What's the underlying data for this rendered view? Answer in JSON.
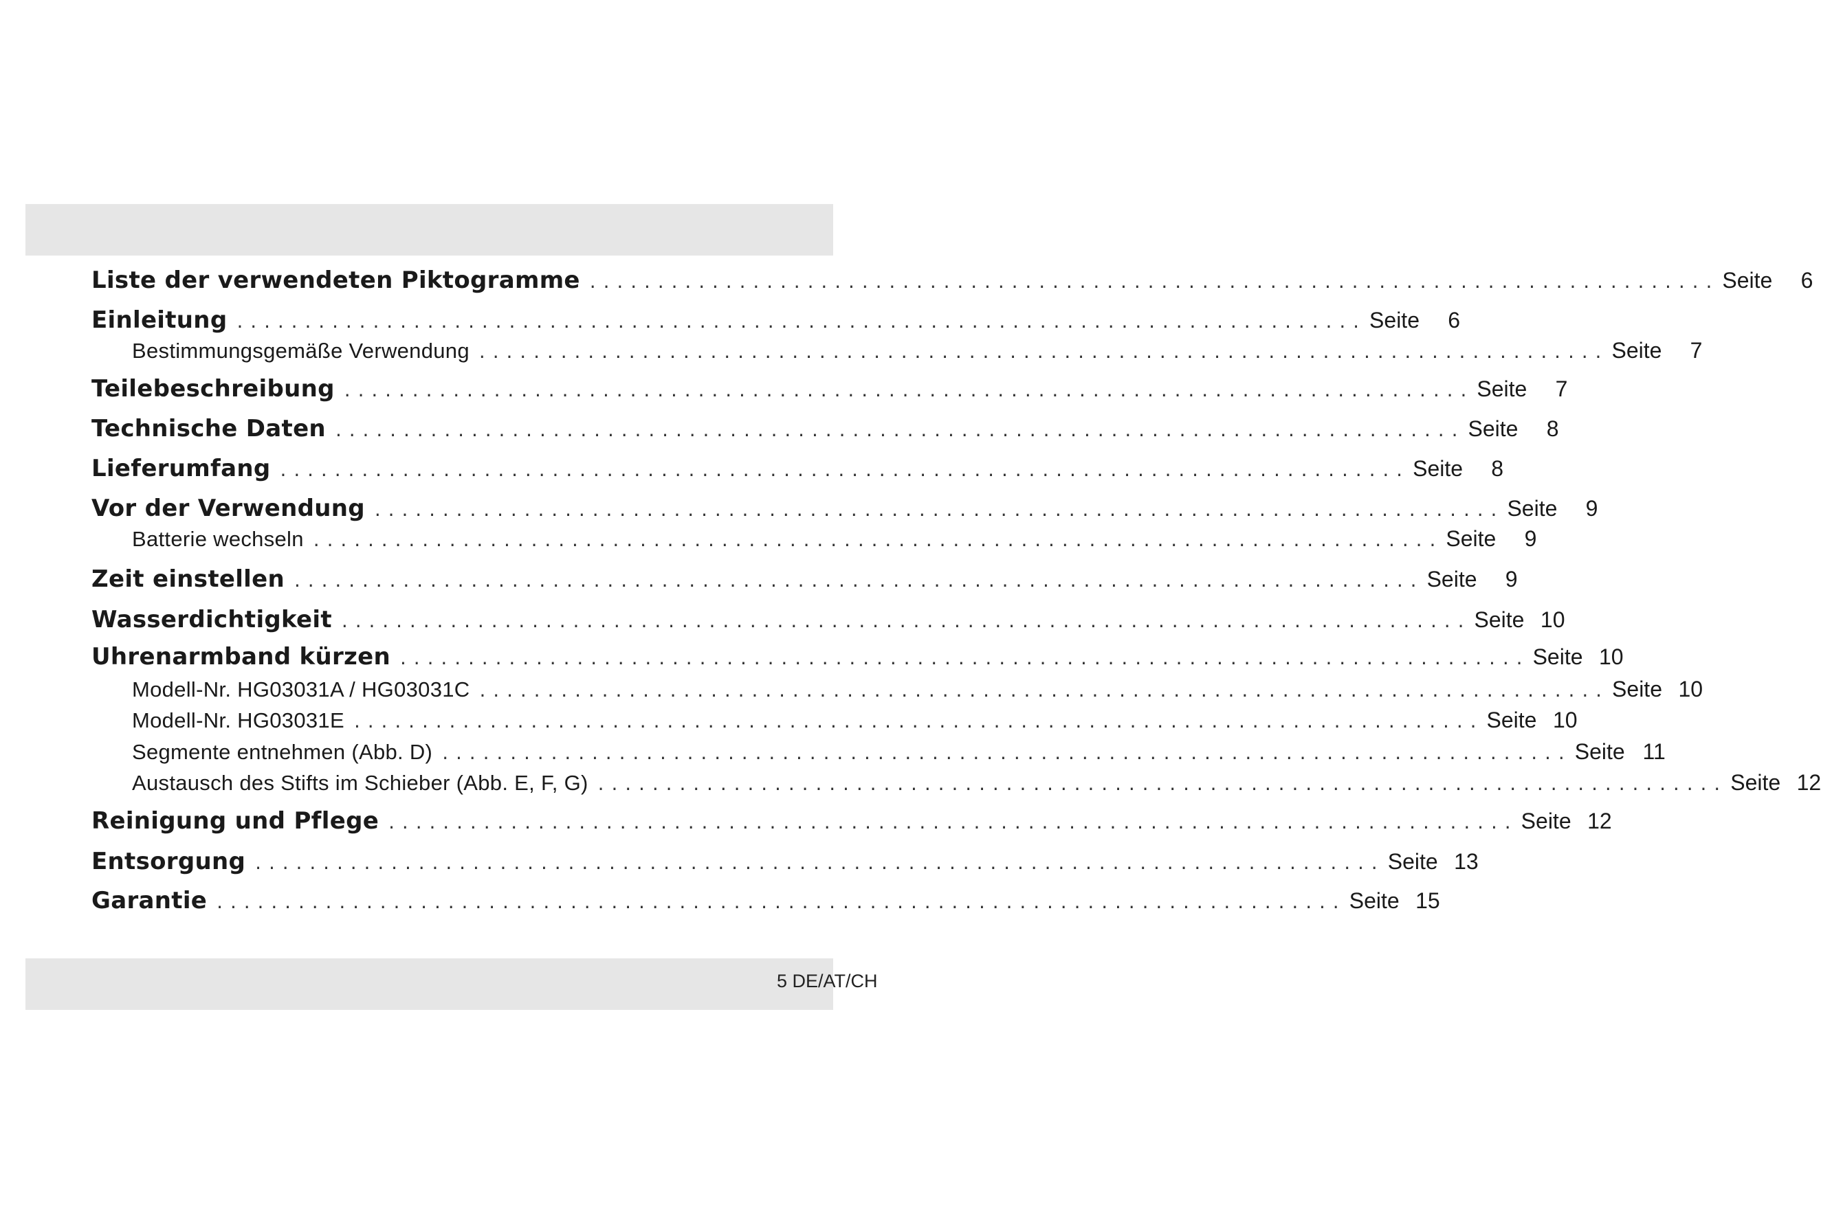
{
  "footer": {
    "page_label": "5 DE/AT/CH"
  },
  "toc": [
    {
      "title": "Liste der verwendeten Piktogramme",
      "level": 1,
      "page_label": "Seite",
      "page": "6"
    },
    {
      "title": "Einleitung",
      "level": 1,
      "page_label": "Seite",
      "page": "6"
    },
    {
      "title": "Bestimmungsgemäße Verwendung",
      "level": 2,
      "page_label": "Seite",
      "page": "7"
    },
    {
      "title": "Teilebeschreibung",
      "level": 1,
      "page_label": "Seite",
      "page": "7"
    },
    {
      "title": "Technische Daten",
      "level": 1,
      "page_label": "Seite",
      "page": "8"
    },
    {
      "title": "Lieferumfang",
      "level": 1,
      "page_label": "Seite",
      "page": "8"
    },
    {
      "title": "Vor der Verwendung",
      "level": 1,
      "page_label": "Seite",
      "page": "9"
    },
    {
      "title": "Batterie wechseln",
      "level": 2,
      "page_label": "Seite",
      "page": "9"
    },
    {
      "title": "Zeit einstellen",
      "level": 1,
      "page_label": "Seite",
      "page": "9"
    },
    {
      "title": "Wasserdichtigkeit",
      "level": 1,
      "page_label": "Seite",
      "page": "10"
    },
    {
      "title": "Uhrenarmband kürzen",
      "level": 1,
      "page_label": "Seite",
      "page": "10"
    },
    {
      "title": "Modell-Nr. HG03031A / HG03031C",
      "level": 2,
      "page_label": "Seite",
      "page": "10"
    },
    {
      "title": "Modell-Nr. HG03031E",
      "level": 2,
      "page_label": "Seite",
      "page": "10"
    },
    {
      "title": "Segmente entnehmen (Abb. D)",
      "level": 2,
      "page_label": "Seite",
      "page": "11"
    },
    {
      "title": "Austausch des Stifts im Schieber (Abb. E, F, G)",
      "level": 2,
      "page_label": "Seite",
      "page": "12"
    },
    {
      "title": "Reinigung und Pflege",
      "level": 1,
      "page_label": "Seite",
      "page": "12"
    },
    {
      "title": "Entsorgung",
      "level": 1,
      "page_label": "Seite",
      "page": "13"
    },
    {
      "title": "Garantie",
      "level": 1,
      "page_label": "Seite",
      "page": "15"
    }
  ]
}
